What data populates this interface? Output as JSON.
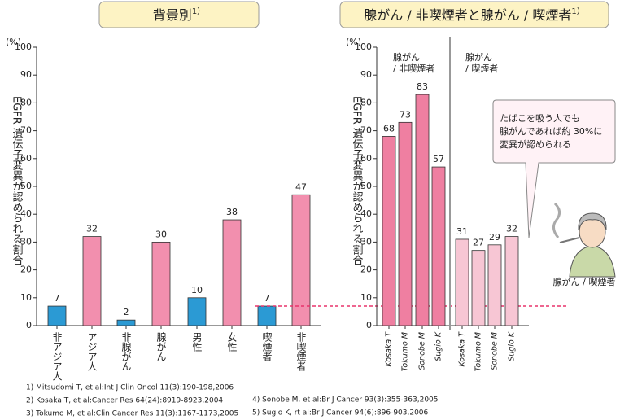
{
  "chart_data": [
    {
      "type": "bar",
      "title": "背景別",
      "title_note": "1）",
      "unit_label": "(%)",
      "y_label": "EGFR 遺伝子変異が認められる割合",
      "categories": [
        "非アジア人",
        "アジア人",
        "非腺がん",
        "腺がん",
        "男性",
        "女性",
        "喫煙者",
        "非喫煙者"
      ],
      "values": [
        7,
        32,
        2,
        30,
        10,
        38,
        7,
        47
      ],
      "colors": [
        "#2b9ad4",
        "#f28fae",
        "#2b9ad4",
        "#f28fae",
        "#2b9ad4",
        "#f28fae",
        "#2b9ad4",
        "#f28fae"
      ],
      "ylim": [
        0,
        100
      ],
      "yticks": [
        0,
        10,
        20,
        30,
        40,
        50,
        60,
        70,
        80,
        90,
        100
      ],
      "reference_line": {
        "value": 7,
        "color": "#e8336b"
      }
    },
    {
      "type": "bar",
      "title": "腺がん / 非喫煙者と腺がん / 喫煙者",
      "title_note": "1）",
      "unit_label": "(%)",
      "y_label": "EGFR 遺伝子変異が認められる割合",
      "categories": [
        "Kosaka T",
        "Tokumo M",
        "Sonobe M",
        "Sugio K",
        "Kosaka T",
        "Tokumo M",
        "Sonobe M",
        "Sugio K"
      ],
      "values": [
        68,
        73,
        83,
        57,
        31,
        27,
        29,
        32
      ],
      "colors": [
        "#ef7fa1",
        "#ef7fa1",
        "#ef7fa1",
        "#ef7fa1",
        "#f7c6d4",
        "#f7c6d4",
        "#f7c6d4",
        "#f7c6d4"
      ],
      "ylim": [
        0,
        100
      ],
      "yticks": [
        0,
        10,
        20,
        30,
        40,
        50,
        60,
        70,
        80,
        90,
        100
      ],
      "groups": [
        [
          "腺がん",
          "/ 非喫煙者"
        ],
        [
          "腺がん",
          "/ 喫煙者"
        ]
      ],
      "annotation": [
        "たばこを吸う人でも",
        "腺がんであれば約 30%に",
        "変異が認められる"
      ],
      "figure_label": "腺がん / 喫煙者"
    }
  ],
  "references": [
    "1) Mitsudomi T, et al:Int J Clin Oncol 11(3):190-198,2006",
    "2) Kosaka T, et al:Cancer Res 64(24):8919-8923,2004",
    "3) Tokumo M, et al:Clin Cancer Res 11(3):1167-1173,2005",
    "4) Sonobe M, et al:Br J Cancer 93(3):355-363,2005",
    "5) Sugio K, rt al:Br J Cancer 94(6):896-903,2006"
  ]
}
